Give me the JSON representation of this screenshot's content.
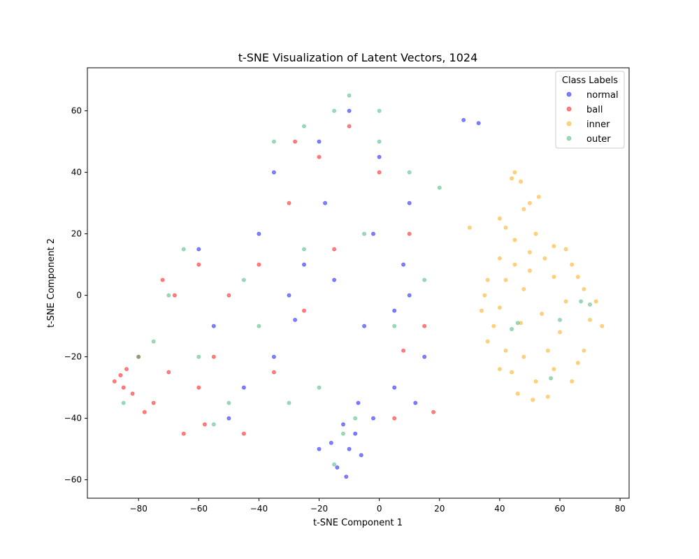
{
  "chart_data": {
    "type": "scatter",
    "title": "t-SNE Visualization of Latent Vectors, 1024",
    "xlabel": "t-SNE Component 1",
    "ylabel": "t-SNE Component 2",
    "xlim": [
      -97,
      83
    ],
    "ylim": [
      -66,
      74
    ],
    "xticks": [
      -80,
      -60,
      -40,
      -20,
      0,
      20,
      40,
      60,
      80
    ],
    "yticks": [
      -60,
      -40,
      -20,
      0,
      20,
      40,
      60
    ],
    "xtick_labels": [
      "−80",
      "−60",
      "−40",
      "−20",
      "0",
      "20",
      "40",
      "60",
      "80"
    ],
    "ytick_labels": [
      "−60",
      "−40",
      "−20",
      "0",
      "20",
      "40",
      "60"
    ],
    "grid": false,
    "legend": {
      "title": "Class Labels",
      "placement": "top-right"
    },
    "series": [
      {
        "name": "normal",
        "color": "#0000ff",
        "alpha": 0.5,
        "values": [
          [
            -10,
            -50
          ],
          [
            -14,
            -56
          ],
          [
            -8,
            -45
          ],
          [
            -16,
            -48
          ],
          [
            -6,
            -52
          ],
          [
            -12,
            -42
          ],
          [
            -2,
            -40
          ],
          [
            -20,
            -50
          ],
          [
            -11,
            -59
          ],
          [
            -7,
            -35
          ],
          [
            -30,
            0
          ],
          [
            -25,
            10
          ],
          [
            -15,
            5
          ],
          [
            -5,
            -10
          ],
          [
            5,
            -5
          ],
          [
            10,
            0
          ],
          [
            -40,
            20
          ],
          [
            -35,
            40
          ],
          [
            -20,
            50
          ],
          [
            -10,
            60
          ],
          [
            0,
            45
          ],
          [
            10,
            30
          ],
          [
            15,
            -20
          ],
          [
            -45,
            -30
          ],
          [
            -55,
            -10
          ],
          [
            -60,
            15
          ],
          [
            -50,
            -40
          ],
          [
            -35,
            -20
          ],
          [
            5,
            -30
          ],
          [
            -18,
            30
          ],
          [
            28,
            57
          ],
          [
            33,
            56
          ],
          [
            -2,
            20
          ],
          [
            -28,
            -8
          ],
          [
            8,
            10
          ],
          [
            12,
            -35
          ]
        ]
      },
      {
        "name": "ball",
        "color": "#ff0000",
        "alpha": 0.5,
        "values": [
          [
            -88,
            -28
          ],
          [
            -85,
            -30
          ],
          [
            -86,
            -26
          ],
          [
            -82,
            -32
          ],
          [
            -80,
            -20
          ],
          [
            -70,
            -25
          ],
          [
            -72,
            5
          ],
          [
            -68,
            0
          ],
          [
            -75,
            -35
          ],
          [
            -65,
            -45
          ],
          [
            -60,
            -30
          ],
          [
            -55,
            -20
          ],
          [
            -45,
            -45
          ],
          [
            -50,
            0
          ],
          [
            -40,
            10
          ],
          [
            -30,
            30
          ],
          [
            -20,
            45
          ],
          [
            -10,
            55
          ],
          [
            0,
            40
          ],
          [
            10,
            20
          ],
          [
            15,
            -10
          ],
          [
            5,
            -40
          ],
          [
            18,
            -38
          ],
          [
            -25,
            -5
          ],
          [
            -35,
            -25
          ],
          [
            -15,
            15
          ],
          [
            -60,
            10
          ],
          [
            -84,
            -24
          ],
          [
            -78,
            -38
          ],
          [
            -58,
            -42
          ],
          [
            -28,
            50
          ],
          [
            8,
            -18
          ]
        ]
      },
      {
        "name": "inner",
        "color": "#ffa500",
        "alpha": 0.5,
        "values": [
          [
            52,
            20
          ],
          [
            45,
            18
          ],
          [
            58,
            16
          ],
          [
            40,
            12
          ],
          [
            64,
            10
          ],
          [
            36,
            5
          ],
          [
            68,
            2
          ],
          [
            34,
            -5
          ],
          [
            70,
            -8
          ],
          [
            36,
            -15
          ],
          [
            68,
            -18
          ],
          [
            40,
            -24
          ],
          [
            64,
            -28
          ],
          [
            46,
            -32
          ],
          [
            56,
            -33
          ],
          [
            51,
            -34
          ],
          [
            45,
            10
          ],
          [
            50,
            8
          ],
          [
            55,
            12
          ],
          [
            48,
            2
          ],
          [
            42,
            5
          ],
          [
            58,
            6
          ],
          [
            62,
            -2
          ],
          [
            60,
            -12
          ],
          [
            58,
            -24
          ],
          [
            42,
            -18
          ],
          [
            38,
            -10
          ],
          [
            44,
            -25
          ],
          [
            52,
            -28
          ],
          [
            66,
            -22
          ],
          [
            35,
            0
          ],
          [
            72,
            -2
          ],
          [
            74,
            -10
          ],
          [
            47,
            -9
          ],
          [
            45,
            40
          ],
          [
            44,
            38
          ],
          [
            47,
            37
          ],
          [
            48,
            28
          ],
          [
            50,
            30
          ],
          [
            53,
            32
          ],
          [
            40,
            25
          ],
          [
            42,
            22
          ],
          [
            30,
            22
          ],
          [
            62,
            15
          ],
          [
            56,
            -18
          ],
          [
            48,
            -20
          ],
          [
            40,
            -4
          ],
          [
            66,
            6
          ],
          [
            54,
            -6
          ],
          [
            50,
            14
          ]
        ]
      },
      {
        "name": "outer",
        "color": "#3cb371",
        "alpha": 0.5,
        "values": [
          [
            -12,
            -45
          ],
          [
            -15,
            -55
          ],
          [
            -8,
            -40
          ],
          [
            -20,
            -30
          ],
          [
            -30,
            -35
          ],
          [
            -50,
            -35
          ],
          [
            -60,
            -20
          ],
          [
            -80,
            -20
          ],
          [
            -75,
            -15
          ],
          [
            -70,
            0
          ],
          [
            -65,
            15
          ],
          [
            -45,
            5
          ],
          [
            -35,
            50
          ],
          [
            -25,
            55
          ],
          [
            -15,
            60
          ],
          [
            0,
            50
          ],
          [
            10,
            40
          ],
          [
            20,
            35
          ],
          [
            15,
            5
          ],
          [
            5,
            -10
          ],
          [
            -5,
            20
          ],
          [
            -25,
            15
          ],
          [
            -40,
            -10
          ],
          [
            44,
            -11
          ],
          [
            46,
            -9
          ],
          [
            67,
            -2
          ],
          [
            70,
            -3
          ],
          [
            57,
            -27
          ],
          [
            60,
            -8
          ],
          [
            -10,
            65
          ],
          [
            0,
            60
          ],
          [
            -55,
            -42
          ],
          [
            -85,
            -35
          ]
        ]
      }
    ]
  }
}
